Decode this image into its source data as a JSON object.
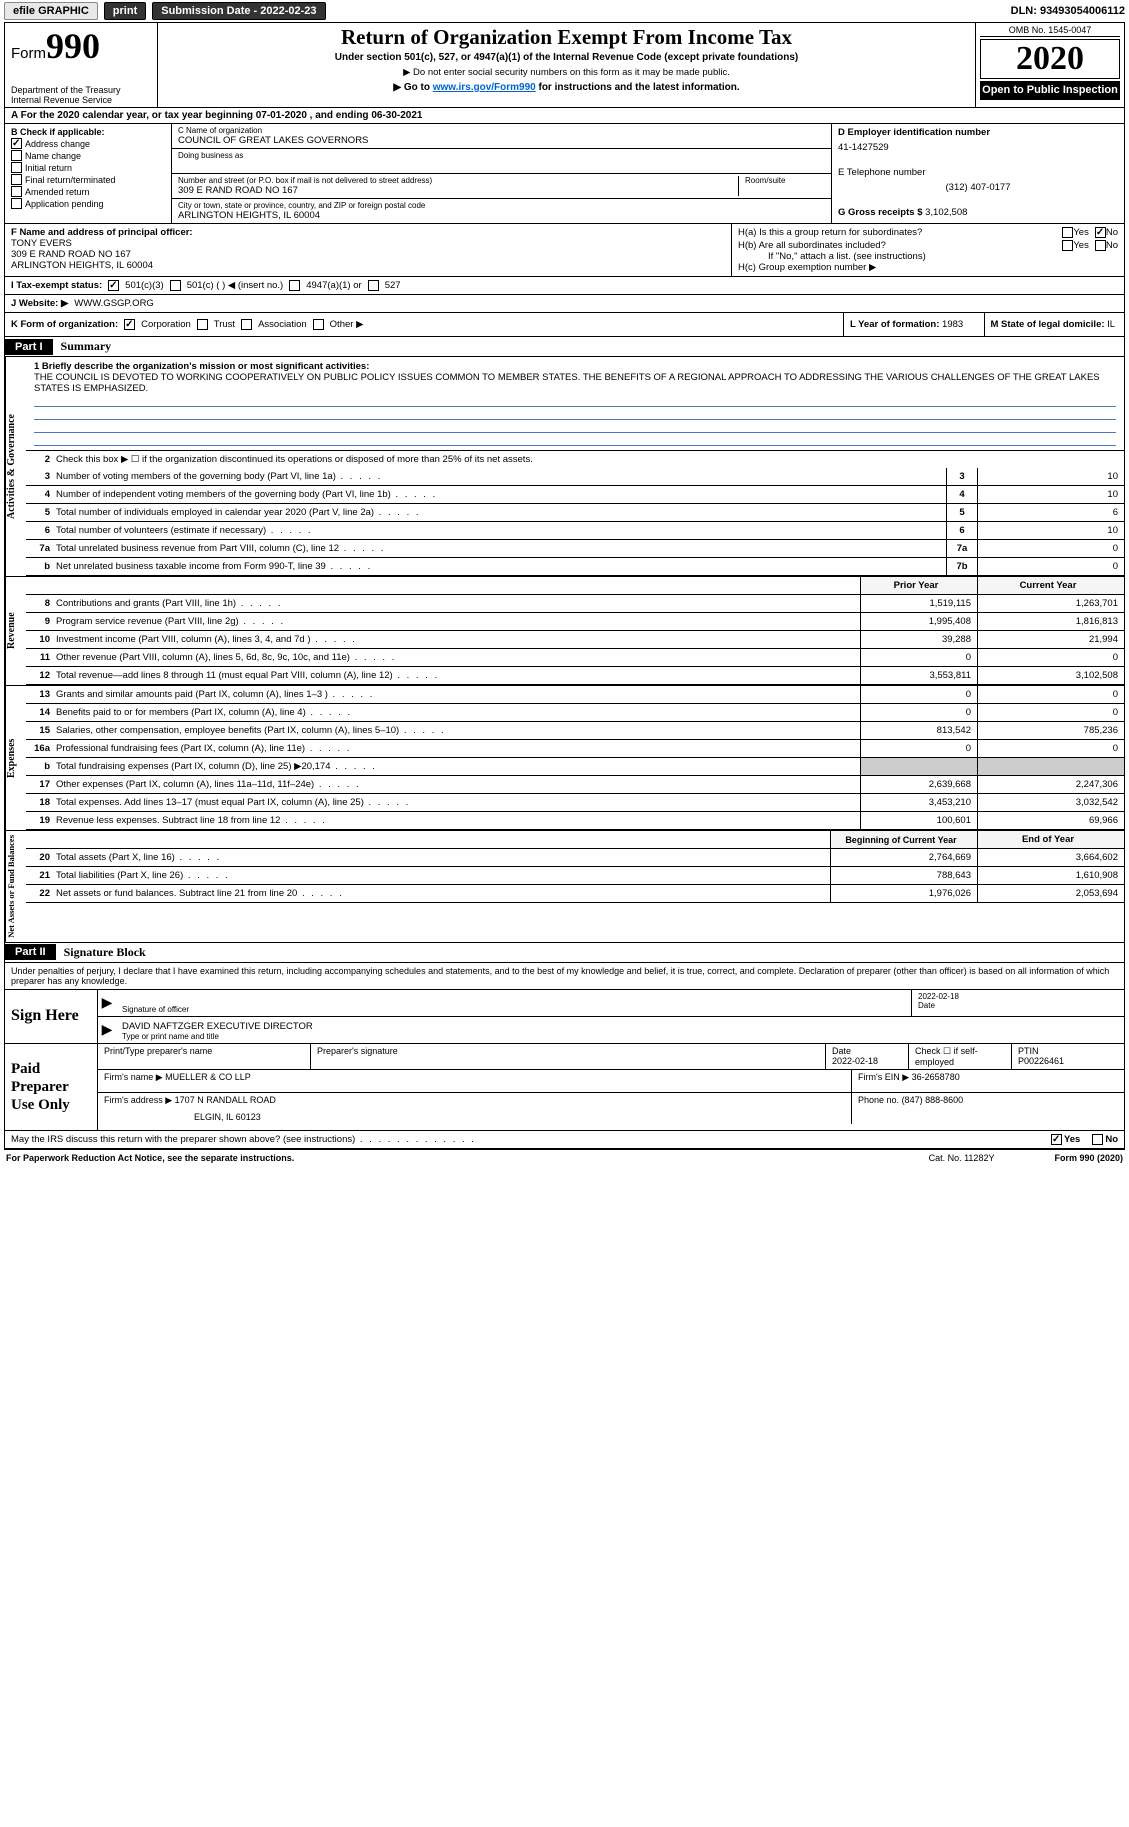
{
  "top_bar": {
    "efile_label": "efile GRAPHIC",
    "print_btn": "print",
    "sub_date_label": "Submission Date - 2022-02-23",
    "dln": "DLN: 93493054006112"
  },
  "header": {
    "form_prefix": "Form",
    "form_number": "990",
    "dept": "Department of the Treasury",
    "irs": "Internal Revenue Service",
    "title": "Return of Organization Exempt From Income Tax",
    "subtitle": "Under section 501(c), 527, or 4947(a)(1) of the Internal Revenue Code (except private foundations)",
    "note1": "▶ Do not enter social security numbers on this form as it may be made public.",
    "note2_pre": "▶ Go to ",
    "note2_link": "www.irs.gov/Form990",
    "note2_post": " for instructions and the latest information.",
    "omb": "OMB No. 1545-0047",
    "year": "2020",
    "open_public": "Open to Public Inspection"
  },
  "period": "A For the 2020 calendar year, or tax year beginning 07-01-2020    , and ending 06-30-2021",
  "section_b": {
    "label": "B Check if applicable:",
    "items": [
      {
        "label": "Address change",
        "checked": true
      },
      {
        "label": "Name change",
        "checked": false
      },
      {
        "label": "Initial return",
        "checked": false
      },
      {
        "label": "Final return/terminated",
        "checked": false
      },
      {
        "label": "Amended return",
        "checked": false
      },
      {
        "label": "Application pending",
        "checked": false
      }
    ]
  },
  "section_c": {
    "name_label": "C Name of organization",
    "name": "COUNCIL OF GREAT LAKES GOVERNORS",
    "dba_label": "Doing business as",
    "dba": "",
    "addr_label": "Number and street (or P.O. box if mail is not delivered to street address)",
    "room_label": "Room/suite",
    "addr": "309 E RAND ROAD NO 167",
    "city_label": "City or town, state or province, country, and ZIP or foreign postal code",
    "city": "ARLINGTON HEIGHTS, IL  60004"
  },
  "section_d": {
    "label": "D Employer identification number",
    "ein": "41-1427529",
    "phone_label": "E Telephone number",
    "phone": "(312) 407-0177",
    "gross_label": "G Gross receipts $",
    "gross": "3,102,508"
  },
  "section_f": {
    "label": "F Name and address of principal officer:",
    "name": "TONY EVERS",
    "addr1": "309 E RAND ROAD NO 167",
    "addr2": "ARLINGTON HEIGHTS, IL  60004"
  },
  "section_h": {
    "ha_label": "H(a)  Is this a group return for subordinates?",
    "hb_label": "H(b)  Are all subordinates included?",
    "hb_note": "If \"No,\" attach a list. (see instructions)",
    "hc_label": "H(c)  Group exemption number ▶"
  },
  "row_i": {
    "label": "I   Tax-exempt status:",
    "opts": [
      "501(c)(3)",
      "501(c) (  ) ◀ (insert no.)",
      "4947(a)(1) or",
      "527"
    ]
  },
  "row_j": {
    "label": "J   Website: ▶",
    "val": "WWW.GSGP.ORG"
  },
  "row_k": {
    "label": "K Form of organization:",
    "opts": [
      "Corporation",
      "Trust",
      "Association",
      "Other ▶"
    ],
    "l_label": "L Year of formation:",
    "l_val": "1983",
    "m_label": "M State of legal domicile:",
    "m_val": "IL"
  },
  "part1": {
    "header": "Part I",
    "title": "Summary"
  },
  "mission": {
    "label": "1   Briefly describe the organization's mission or most significant activities:",
    "text": "THE COUNCIL IS DEVOTED TO WORKING COOPERATIVELY ON PUBLIC POLICY ISSUES COMMON TO MEMBER STATES. THE BENEFITS OF A REGIONAL APPROACH TO ADDRESSING THE VARIOUS CHALLENGES OF THE GREAT LAKES STATES IS EMPHASIZED."
  },
  "governance": {
    "side": "Activities & Governance",
    "line2": "Check this box ▶ ☐  if the organization discontinued its operations or disposed of more than 25% of its net assets.",
    "rows": [
      {
        "n": "3",
        "desc": "Number of voting members of the governing body (Part VI, line 1a)",
        "box": "3",
        "val": "10"
      },
      {
        "n": "4",
        "desc": "Number of independent voting members of the governing body (Part VI, line 1b)",
        "box": "4",
        "val": "10"
      },
      {
        "n": "5",
        "desc": "Total number of individuals employed in calendar year 2020 (Part V, line 2a)",
        "box": "5",
        "val": "6"
      },
      {
        "n": "6",
        "desc": "Total number of volunteers (estimate if necessary)",
        "box": "6",
        "val": "10"
      },
      {
        "n": "7a",
        "desc": "Total unrelated business revenue from Part VIII, column (C), line 12",
        "box": "7a",
        "val": "0"
      },
      {
        "n": "b",
        "desc": "Net unrelated business taxable income from Form 990-T, line 39",
        "box": "7b",
        "val": "0"
      }
    ]
  },
  "revenue": {
    "side": "Revenue",
    "header_prior": "Prior Year",
    "header_curr": "Current Year",
    "rows": [
      {
        "n": "8",
        "desc": "Contributions and grants (Part VIII, line 1h)",
        "prior": "1,519,115",
        "curr": "1,263,701"
      },
      {
        "n": "9",
        "desc": "Program service revenue (Part VIII, line 2g)",
        "prior": "1,995,408",
        "curr": "1,816,813"
      },
      {
        "n": "10",
        "desc": "Investment income (Part VIII, column (A), lines 3, 4, and 7d )",
        "prior": "39,288",
        "curr": "21,994"
      },
      {
        "n": "11",
        "desc": "Other revenue (Part VIII, column (A), lines 5, 6d, 8c, 9c, 10c, and 11e)",
        "prior": "0",
        "curr": "0"
      },
      {
        "n": "12",
        "desc": "Total revenue—add lines 8 through 11 (must equal Part VIII, column (A), line 12)",
        "prior": "3,553,811",
        "curr": "3,102,508"
      }
    ]
  },
  "expenses": {
    "side": "Expenses",
    "rows": [
      {
        "n": "13",
        "desc": "Grants and similar amounts paid (Part IX, column (A), lines 1–3 )",
        "prior": "0",
        "curr": "0"
      },
      {
        "n": "14",
        "desc": "Benefits paid to or for members (Part IX, column (A), line 4)",
        "prior": "0",
        "curr": "0"
      },
      {
        "n": "15",
        "desc": "Salaries, other compensation, employee benefits (Part IX, column (A), lines 5–10)",
        "prior": "813,542",
        "curr": "785,236"
      },
      {
        "n": "16a",
        "desc": "Professional fundraising fees (Part IX, column (A), line 11e)",
        "prior": "0",
        "curr": "0"
      },
      {
        "n": "b",
        "desc": "Total fundraising expenses (Part IX, column (D), line 25) ▶20,174",
        "prior": "",
        "curr": "",
        "shaded": true
      },
      {
        "n": "17",
        "desc": "Other expenses (Part IX, column (A), lines 11a–11d, 11f–24e)",
        "prior": "2,639,668",
        "curr": "2,247,306"
      },
      {
        "n": "18",
        "desc": "Total expenses. Add lines 13–17 (must equal Part IX, column (A), line 25)",
        "prior": "3,453,210",
        "curr": "3,032,542"
      },
      {
        "n": "19",
        "desc": "Revenue less expenses. Subtract line 18 from line 12",
        "prior": "100,601",
        "curr": "69,966"
      }
    ]
  },
  "netassets": {
    "side": "Net Assets or Fund Balances",
    "header_prior": "Beginning of Current Year",
    "header_curr": "End of Year",
    "rows": [
      {
        "n": "20",
        "desc": "Total assets (Part X, line 16)",
        "prior": "2,764,669",
        "curr": "3,664,602"
      },
      {
        "n": "21",
        "desc": "Total liabilities (Part X, line 26)",
        "prior": "788,643",
        "curr": "1,610,908"
      },
      {
        "n": "22",
        "desc": "Net assets or fund balances. Subtract line 21 from line 20",
        "prior": "1,976,026",
        "curr": "2,053,694"
      }
    ]
  },
  "part2": {
    "header": "Part II",
    "title": "Signature Block"
  },
  "sig_intro": "Under penalties of perjury, I declare that I have examined this return, including accompanying schedules and statements, and to the best of my knowledge and belief, it is true, correct, and complete. Declaration of preparer (other than officer) is based on all information of which preparer has any knowledge.",
  "sign_here": {
    "label": "Sign Here",
    "sig_label": "Signature of officer",
    "date": "2022-02-18",
    "date_label": "Date",
    "name": "DAVID NAFTZGER  EXECUTIVE DIRECTOR",
    "name_label": "Type or print name and title"
  },
  "preparer": {
    "label": "Paid Preparer Use Only",
    "h1": "Print/Type preparer's name",
    "h2": "Preparer's signature",
    "h3_label": "Date",
    "h3": "2022-02-18",
    "h4_label": "Check ☐ if self-employed",
    "h5_label": "PTIN",
    "h5": "P00226461",
    "firm_label": "Firm's name    ▶",
    "firm": "MUELLER & CO LLP",
    "ein_label": "Firm's EIN ▶",
    "ein": "36-2658780",
    "addr_label": "Firm's address ▶",
    "addr1": "1707 N RANDALL ROAD",
    "addr2": "ELGIN, IL  60123",
    "phone_label": "Phone no.",
    "phone": "(847) 888-8600"
  },
  "discuss": {
    "text": "May the IRS discuss this return with the preparer shown above? (see instructions)",
    "yes": "Yes",
    "no": "No"
  },
  "footer": {
    "left": "For Paperwork Reduction Act Notice, see the separate instructions.",
    "mid": "Cat. No. 11282Y",
    "right": "Form 990 (2020)"
  }
}
